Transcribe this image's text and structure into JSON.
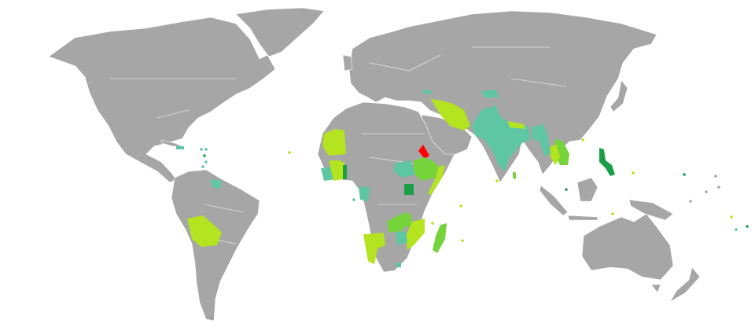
{
  "map": {
    "background_color": "#ffffff",
    "land_color": "#a6a6a6",
    "border_color": "#ffffff",
    "category_colors": {
      "lime": "#b4e31f",
      "medium_green": "#76d33a",
      "teal": "#5ec6a2",
      "dark_green": "#1a9e48",
      "red": "#ff0000"
    }
  }
}
